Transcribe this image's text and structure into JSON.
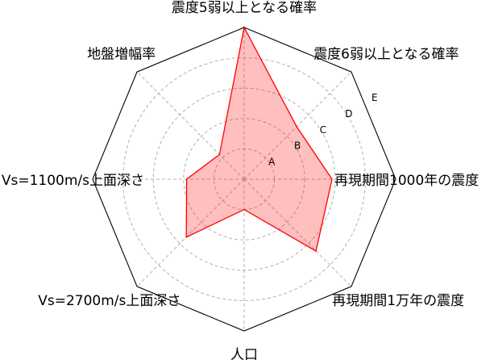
{
  "chart_data": {
    "type": "radar",
    "axes": [
      "震度5弱以上となる確率",
      "震度6弱以上となる確率",
      "再現期間1000年の震度",
      "再現期間1万年の震度",
      "人口",
      "Vs=2700m/s上面深さ",
      "Vs=1100m/s上面深さ",
      "地盤増幅率"
    ],
    "levels": [
      "A",
      "B",
      "C",
      "D",
      "E"
    ],
    "range": [
      0,
      5
    ],
    "series": [
      {
        "values": [
          5.0,
          2.45,
          2.9,
          3.35,
          1.0,
          2.7,
          1.9,
          1.15
        ],
        "line_color": "#ff0000",
        "fill_color": "#ff0000",
        "fill_opacity": 0.25
      }
    ],
    "grid": true,
    "outline_color": "#000000",
    "grid_color": "#b0b0b0"
  }
}
